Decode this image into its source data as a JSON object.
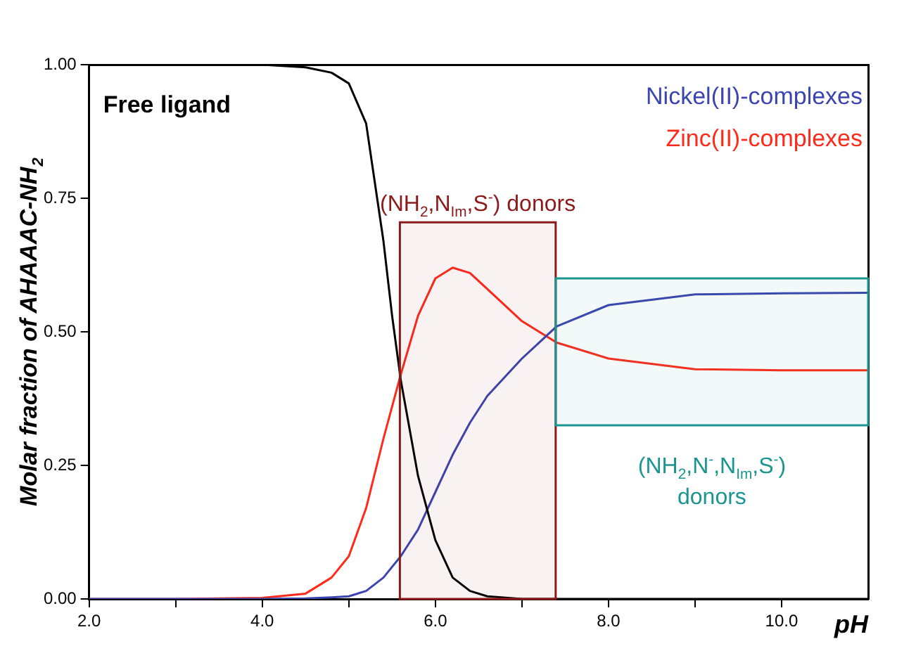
{
  "chart_data": {
    "type": "line",
    "xlabel": "pH",
    "ylabel": "Molar fraction of AHAAAC-NH$_{2}$",
    "x": [
      2,
      3,
      4,
      4.5,
      4.8,
      5.0,
      5.2,
      5.4,
      5.5,
      5.6,
      5.8,
      6.0,
      6.2,
      6.4,
      6.6,
      7.0,
      7.4,
      8,
      9,
      10,
      11
    ],
    "series": [
      {
        "name": "Free ligand",
        "color": "#000000",
        "values": [
          1,
          1,
          1,
          0.995,
          0.985,
          0.965,
          0.89,
          0.67,
          0.53,
          0.41,
          0.23,
          0.11,
          0.04,
          0.015,
          0.005,
          0,
          0,
          0,
          0,
          0,
          0
        ]
      },
      {
        "name": "Nickel(II)-complexes",
        "color": "#3b45b0",
        "values": [
          0,
          0,
          0,
          0.001,
          0.003,
          0.005,
          0.015,
          0.04,
          0.06,
          0.08,
          0.13,
          0.2,
          0.27,
          0.33,
          0.38,
          0.45,
          0.51,
          0.55,
          0.57,
          0.572,
          0.573
        ]
      },
      {
        "name": "Zinc(II)-complexes",
        "color": "#ff2a1a",
        "values": [
          0,
          0,
          0.002,
          0.01,
          0.04,
          0.08,
          0.17,
          0.3,
          0.36,
          0.42,
          0.53,
          0.6,
          0.62,
          0.61,
          0.58,
          0.52,
          0.48,
          0.45,
          0.43,
          0.428,
          0.428
        ]
      }
    ],
    "xlim": [
      2,
      11
    ],
    "xticks": [
      {
        "value": 2,
        "label": "2.0"
      },
      {
        "value": 3,
        "label": null
      },
      {
        "value": 4,
        "label": "4.0"
      },
      {
        "value": 5,
        "label": null
      },
      {
        "value": 6,
        "label": "6.0"
      },
      {
        "value": 7,
        "label": null
      },
      {
        "value": 8,
        "label": "8.0"
      },
      {
        "value": 9,
        "label": null
      },
      {
        "value": 10,
        "label": "10.0"
      }
    ],
    "ylim": [
      0,
      1
    ],
    "yticks": [
      {
        "value": 0,
        "label": "0.00"
      },
      {
        "value": 0.25,
        "label": "0.25"
      },
      {
        "value": 0.5,
        "label": "0.50"
      },
      {
        "value": 0.75,
        "label": "0.75"
      },
      {
        "value": 1,
        "label": "1.00"
      }
    ],
    "bands": [
      {
        "axis": "x",
        "from": 5.59,
        "to": 7.39,
        "label": "(NH$_{2}$,N$_{Im}$,S$^{-}$) donors",
        "color": "#8b1a1a"
      },
      {
        "axis": "x",
        "from": 7.39,
        "to": 11,
        "label": "(NH$_{2}$,N$^{-}$,N$_{Im}$,S$^{-}$) donors",
        "color": "#1a9590"
      }
    ],
    "grid": false,
    "legend": false,
    "marker": "none",
    "line_style": "solid"
  }
}
